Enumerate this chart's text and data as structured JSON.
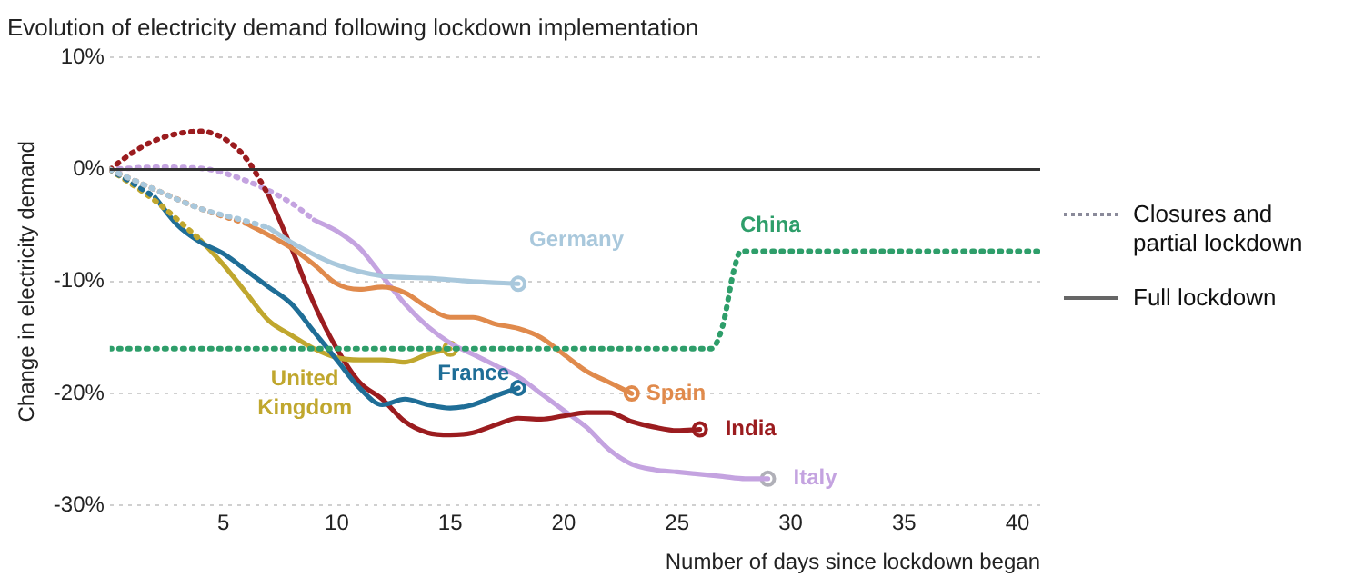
{
  "chart_data": {
    "type": "line",
    "title": "Evolution of electricity demand following lockdown implementation",
    "xlabel": "Number of days since lockdown began",
    "ylabel": "Change in electricity demand",
    "xlim": [
      0,
      41
    ],
    "xticks": [
      5,
      10,
      15,
      20,
      25,
      30,
      35,
      40
    ],
    "ylim": [
      -30,
      10
    ],
    "yticks": [
      {
        "value": 10,
        "label": "10%"
      },
      {
        "value": 0,
        "label": "0%"
      },
      {
        "value": -10,
        "label": "-10%"
      },
      {
        "value": -20,
        "label": "-20%"
      },
      {
        "value": -30,
        "label": "-30%"
      }
    ],
    "grid": "y",
    "legend": "right",
    "ref_lines": [
      {
        "axis": "y",
        "value": 0,
        "color": "#333333"
      }
    ],
    "annotations": [
      "Closures and partial lockdown",
      "Full lockdown"
    ],
    "series": [
      {
        "name": "China",
        "color": "#2e9e6a",
        "line_style": "dotted",
        "x": [
          0,
          26.5,
          27,
          27.5,
          27.8,
          41
        ],
        "values": [
          -16,
          -16,
          -14,
          -9,
          -7.3,
          -7.3
        ]
      },
      {
        "color": "#a9c8dc",
        "line_style": "dotted",
        "x": [
          0,
          2,
          4,
          6,
          7
        ],
        "values": [
          0,
          -1.8,
          -3.5,
          -4.6,
          -5.2
        ]
      },
      {
        "color": "#e08a4c",
        "line_style": "dotted",
        "x": [
          0,
          2,
          4,
          6
        ],
        "values": [
          0,
          -1.8,
          -3.5,
          -4.8
        ]
      },
      {
        "color": "#1f6e97",
        "line_style": "dotted",
        "x": [
          0,
          1,
          2
        ],
        "values": [
          0,
          -1.2,
          -2.5
        ]
      },
      {
        "color": "#c0a72e",
        "line_style": "dotted",
        "x": [
          0,
          2,
          4
        ],
        "values": [
          0,
          -2.8,
          -6.3
        ]
      },
      {
        "color": "#9b1c1f",
        "line_style": "dotted",
        "x": [
          0,
          1,
          2,
          3,
          4,
          5,
          6,
          7
        ],
        "values": [
          0,
          1.5,
          2.6,
          3.2,
          3.4,
          2.8,
          1,
          -2.3
        ]
      },
      {
        "color": "#c4a3e0",
        "line_style": "dotted",
        "x": [
          0,
          2,
          4,
          6,
          8,
          9
        ],
        "values": [
          0,
          0.2,
          0.1,
          -1,
          -3,
          -4.5
        ]
      },
      {
        "name": "Germany",
        "color": "#a9c8dc",
        "line_style": "solid",
        "x": [
          7,
          8,
          10,
          12,
          14,
          16,
          18
        ],
        "values": [
          -5.2,
          -6.5,
          -8.5,
          -9.5,
          -9.7,
          -10,
          -10.2
        ]
      },
      {
        "name": "Spain",
        "color": "#e08a4c",
        "line_style": "solid",
        "x": [
          6,
          8,
          9,
          10,
          11,
          12,
          13,
          14,
          15,
          16,
          17,
          18,
          19,
          20,
          21,
          22,
          23
        ],
        "values": [
          -4.8,
          -7,
          -8.5,
          -10.2,
          -10.7,
          -10.5,
          -11,
          -12.3,
          -13.2,
          -13.2,
          -13.8,
          -14.2,
          -15,
          -16.5,
          -18,
          -19,
          -20
        ]
      },
      {
        "name": "France",
        "color": "#1f6e97",
        "line_style": "solid",
        "x": [
          2,
          3,
          4,
          5,
          6,
          7,
          8,
          9,
          10,
          11,
          12,
          13,
          14,
          15,
          16,
          17,
          18
        ],
        "values": [
          -2.5,
          -5,
          -6.5,
          -7.5,
          -9,
          -10.5,
          -12,
          -14.5,
          -17,
          -19.5,
          -21,
          -20.5,
          -21,
          -21.3,
          -21,
          -20.2,
          -19.5
        ]
      },
      {
        "name": "United Kingdom",
        "color": "#c0a72e",
        "line_style": "solid",
        "x": [
          4,
          5,
          6,
          7,
          8,
          9,
          10,
          11,
          12,
          13,
          14,
          15
        ],
        "values": [
          -6.3,
          -8.5,
          -11,
          -13.5,
          -14.8,
          -16,
          -16.8,
          -17,
          -17,
          -17.2,
          -16.5,
          -16
        ]
      },
      {
        "name": "India",
        "color": "#9b1c1f",
        "line_style": "solid",
        "x": [
          7,
          8,
          9,
          10,
          11,
          12,
          13,
          14,
          15,
          16,
          17,
          18,
          19,
          20,
          21,
          22,
          23,
          24,
          25,
          26
        ],
        "values": [
          -2.3,
          -7,
          -12,
          -16,
          -19,
          -20.5,
          -22.5,
          -23.5,
          -23.7,
          -23.5,
          -22.8,
          -22.2,
          -22.3,
          -22,
          -21.7,
          -21.7,
          -22.5,
          -23,
          -23.3,
          -23.2
        ]
      },
      {
        "name": "Italy",
        "color": "#c4a3e0",
        "line_style": "solid",
        "x": [
          9,
          10,
          11,
          12,
          13,
          14,
          15,
          16,
          17,
          18,
          19,
          20,
          21,
          22,
          23,
          24,
          25,
          26,
          27,
          28,
          29
        ],
        "values": [
          -4.5,
          -5.5,
          -7,
          -9.5,
          -12,
          -14,
          -15.5,
          -16.5,
          -17.5,
          -18.5,
          -20,
          -21.5,
          -23,
          -25,
          -26.3,
          -26.8,
          -27,
          -27.2,
          -27.4,
          -27.6,
          -27.6
        ]
      },
      {
        "type": "scatter",
        "marker": "circle",
        "colors": [
          "#a9c8dc",
          "#e08a4c",
          "#1f6e97",
          "#c0a72e",
          "#9b1c1f",
          "#b0b0b8"
        ],
        "x": [
          18,
          23,
          18,
          15,
          26,
          29
        ],
        "values": [
          -10.2,
          -20,
          -19.5,
          -16,
          -23.2,
          -27.6
        ]
      }
    ]
  }
}
